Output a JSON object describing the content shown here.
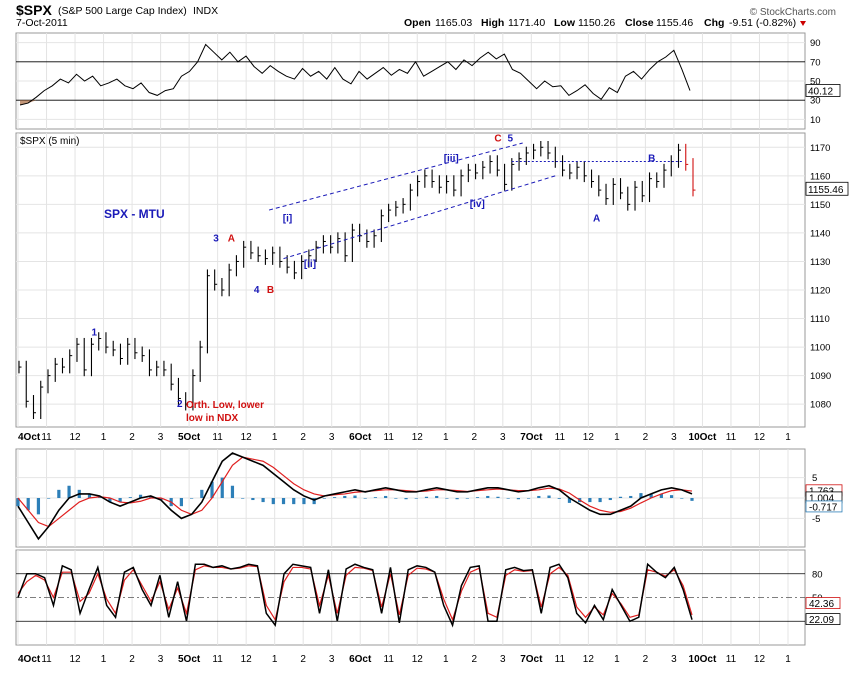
{
  "header": {
    "symbol": "$SPX",
    "name": "(S&P 500 Large Cap Index)",
    "exchange": "INDX",
    "date": "7-Oct-2011",
    "open_label": "Open",
    "open": "1165.03",
    "high_label": "High",
    "high": "1171.40",
    "low_label": "Low",
    "low": "1150.26",
    "close_label": "Close",
    "close": "1155.46",
    "chg_label": "Chg",
    "chg": "-9.51 (-0.82%)",
    "watermark": "© StockCharts.com"
  },
  "colors": {
    "blue": "#1a1ab8",
    "red": "#d01010",
    "macd_red": "#e02020",
    "hist": "#2d7fb8",
    "grid": "#e4e4e4",
    "axis": "#555555"
  },
  "chart_data": [
    {
      "type": "line",
      "name": "RSI",
      "ylim": [
        0,
        100
      ],
      "ticks": [
        "90",
        "70",
        "50",
        "30",
        "10"
      ],
      "reference_lines": [
        70,
        30
      ],
      "value_tag": "40.12",
      "values": [
        25,
        27,
        33,
        40,
        45,
        52,
        48,
        57,
        50,
        55,
        45,
        48,
        52,
        45,
        42,
        48,
        38,
        35,
        40,
        42,
        55,
        60,
        70,
        88,
        80,
        72,
        80,
        70,
        76,
        65,
        58,
        66,
        60,
        55,
        52,
        63,
        55,
        60,
        52,
        64,
        52,
        47,
        60,
        52,
        58,
        64,
        56,
        62,
        58,
        70,
        55,
        60,
        65,
        70,
        62,
        72,
        66,
        74,
        80,
        73,
        78,
        62,
        58,
        50,
        42,
        50,
        44,
        45,
        35,
        40,
        46,
        37,
        31,
        43,
        38,
        55,
        60,
        52,
        62,
        70,
        75,
        82,
        62,
        40
      ]
    },
    {
      "type": "line",
      "name": "$SPX (5 min)",
      "label": "$SPX (5 min)",
      "ylim": [
        1072,
        1175
      ],
      "y_ticks": [
        "1170",
        "1160",
        "1150",
        "1140",
        "1130",
        "1120",
        "1110",
        "1100",
        "1090",
        "1080"
      ],
      "last_tag": "1155.46",
      "x_ticks": [
        "4Oct",
        "11",
        "12",
        "1",
        "2",
        "3",
        "5Oct",
        "11",
        "12",
        "1",
        "2",
        "3",
        "6Oct",
        "11",
        "12",
        "1",
        "2",
        "3",
        "7Oct",
        "11",
        "12",
        "1",
        "2",
        "3",
        "10Oct",
        "11",
        "12",
        "1"
      ],
      "title_text": "SPX - MTU",
      "annotation_text": "Orth. Low, lower low in NDX",
      "wave_labels": [
        {
          "text": "1",
          "x": 10,
          "y": 1104,
          "color": "blue"
        },
        {
          "text": "2",
          "x": 21.8,
          "y": 1079,
          "color": "blue"
        },
        {
          "text": "3",
          "x": 26.8,
          "y": 1137,
          "color": "blue"
        },
        {
          "text": "A",
          "x": 28.8,
          "y": 1137,
          "color": "red"
        },
        {
          "text": "4",
          "x": 32.4,
          "y": 1119,
          "color": "blue"
        },
        {
          "text": "B",
          "x": 34.2,
          "y": 1119,
          "color": "red"
        },
        {
          "text": "[i]",
          "x": 36.4,
          "y": 1144,
          "color": "blue"
        },
        {
          "text": "[ii]",
          "x": 39.3,
          "y": 1128,
          "color": "blue"
        },
        {
          "text": "[iii]",
          "x": 58.6,
          "y": 1165,
          "color": "blue"
        },
        {
          "text": "[iv]",
          "x": 62.2,
          "y": 1149,
          "color": "blue"
        },
        {
          "text": "C",
          "x": 65.6,
          "y": 1172,
          "color": "red"
        },
        {
          "text": "5",
          "x": 67.4,
          "y": 1172,
          "color": "blue"
        },
        {
          "text": "A",
          "x": 79.2,
          "y": 1144,
          "color": "blue"
        },
        {
          "text": "B",
          "x": 86.8,
          "y": 1165,
          "color": "blue"
        }
      ],
      "values": [
        1093,
        1081,
        1077,
        1086,
        1090,
        1094,
        1093,
        1097,
        1101,
        1092,
        1101,
        1103,
        1100,
        1099,
        1096,
        1101,
        1098,
        1097,
        1092,
        1093,
        1092,
        1087,
        1082,
        1080,
        1090,
        1100,
        1125,
        1122,
        1120,
        1127,
        1130,
        1135,
        1133,
        1132,
        1131,
        1133,
        1130,
        1128,
        1126,
        1130,
        1132,
        1135,
        1137,
        1135,
        1138,
        1132,
        1141,
        1139,
        1137,
        1139,
        1146,
        1148,
        1149,
        1150,
        1155,
        1158,
        1160,
        1158,
        1156,
        1158,
        1155,
        1160,
        1162,
        1161,
        1163,
        1165,
        1162,
        1157,
        1164,
        1166,
        1168,
        1169,
        1170,
        1168,
        1165,
        1162,
        1161,
        1163,
        1160,
        1158,
        1155,
        1152,
        1157,
        1154,
        1150,
        1156,
        1153,
        1159,
        1158,
        1162,
        1165,
        1169,
        1164,
        1155
      ]
    },
    {
      "type": "line",
      "name": "MACD",
      "ylim": [
        -12,
        12
      ],
      "ticks": [
        "5",
        "0",
        "-5"
      ],
      "value_tags": [
        "1.763",
        "1.004",
        "-0.717"
      ],
      "series": [
        {
          "name": "MACD",
          "values": [
            -2,
            -6,
            -10,
            -7,
            -3,
            0,
            1,
            1,
            0.5,
            -1,
            -2,
            -1,
            0,
            0.5,
            -0.5,
            -3,
            -5,
            -4,
            -1,
            4,
            9,
            11,
            10,
            9,
            8,
            6,
            4,
            2,
            0.5,
            -0.5,
            0.5,
            1,
            1.5,
            2,
            1.5,
            2,
            2.5,
            2,
            1.5,
            1.5,
            2,
            2.5,
            2,
            1.5,
            1.5,
            2,
            2.5,
            2.5,
            2,
            1.5,
            1.8,
            2.5,
            3,
            2,
            0,
            -1.5,
            -3,
            -4,
            -4,
            -3,
            -2,
            0,
            1,
            2,
            2.5,
            2,
            1
          ]
        },
        {
          "name": "Signal",
          "values": [
            0,
            -3,
            -6,
            -7,
            -5,
            -3,
            -1,
            0,
            0.3,
            0,
            -1,
            -1.2,
            -0.8,
            0,
            0,
            -1,
            -3,
            -4,
            -3,
            0,
            4,
            8,
            10,
            9.5,
            9,
            7.5,
            5.5,
            3.5,
            2,
            1,
            0.5,
            0.8,
            1,
            1.4,
            1.6,
            1.8,
            2,
            2,
            1.8,
            1.6,
            1.7,
            2,
            2,
            1.8,
            1.6,
            1.8,
            2,
            2.2,
            2,
            1.8,
            1.8,
            2,
            2.4,
            2.2,
            1.2,
            -0.5,
            -2,
            -3,
            -3.5,
            -3.3,
            -2.5,
            -1.2,
            0,
            1,
            1.8,
            2,
            1.7
          ]
        }
      ]
    },
    {
      "type": "line",
      "name": "Stochastics",
      "ylim": [
        0,
        100
      ],
      "ticks": [
        "80",
        "50",
        "20"
      ],
      "reference_lines": [
        80,
        20
      ],
      "value_tags": [
        "42.36",
        "22.09"
      ],
      "series": [
        {
          "name": "%K",
          "values": [
            50,
            80,
            80,
            75,
            40,
            90,
            85,
            30,
            60,
            88,
            40,
            25,
            82,
            88,
            60,
            40,
            78,
            25,
            70,
            20,
            92,
            92,
            88,
            90,
            86,
            88,
            92,
            90,
            30,
            15,
            80,
            92,
            90,
            88,
            30,
            85,
            20,
            86,
            92,
            88,
            85,
            30,
            88,
            18,
            85,
            90,
            88,
            82,
            40,
            15,
            65,
            88,
            90,
            20,
            20,
            85,
            88,
            84,
            85,
            30,
            88,
            92,
            75,
            30,
            18,
            40,
            22,
            60,
            40,
            20,
            25,
            92,
            82,
            75,
            88,
            60,
            22
          ]
        },
        {
          "name": "%D",
          "values": [
            55,
            70,
            78,
            72,
            50,
            82,
            82,
            45,
            55,
            80,
            48,
            30,
            72,
            85,
            65,
            45,
            70,
            35,
            62,
            30,
            85,
            90,
            88,
            88,
            86,
            87,
            90,
            89,
            40,
            22,
            70,
            88,
            88,
            86,
            40,
            78,
            30,
            78,
            88,
            87,
            84,
            38,
            80,
            28,
            78,
            87,
            86,
            82,
            48,
            22,
            58,
            82,
            87,
            30,
            25,
            78,
            85,
            83,
            84,
            38,
            80,
            88,
            78,
            38,
            25,
            38,
            28,
            55,
            42,
            25,
            28,
            85,
            82,
            77,
            85,
            65,
            28
          ]
        }
      ]
    }
  ]
}
